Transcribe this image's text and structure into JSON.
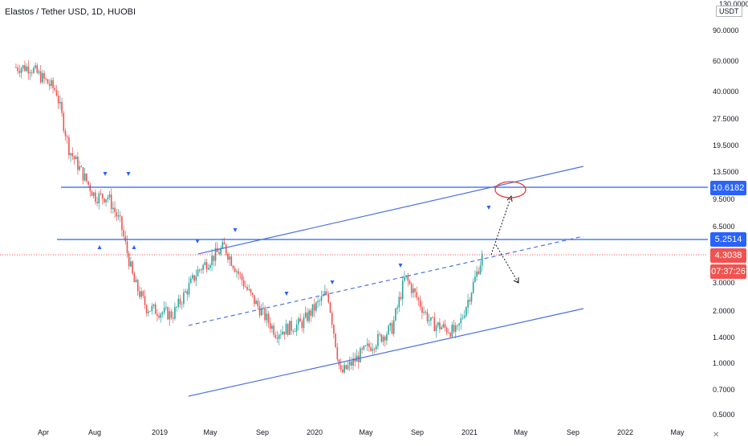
{
  "title": "Elastos / Tether USD, 1D, HUOBI",
  "quote_currency": "USDT",
  "colors": {
    "up": "#26a69a",
    "down": "#ef5350",
    "level": "#2962ff",
    "channel": "#4a72e0",
    "current": "#ef5350",
    "target_ellipse": "#e53935"
  },
  "icons": {
    "pivot_marker": "arrow-icon",
    "close": "close-icon"
  },
  "price_scale": {
    "top_label": "130.0000",
    "ticks": [
      "90.0000",
      "60.0000",
      "40.0000",
      "27.5000",
      "19.5000",
      "13.5000",
      "9.5000",
      "6.5000",
      "3.0000",
      "2.0000",
      "1.4000",
      "1.0000",
      "0.7000",
      "0.5000"
    ]
  },
  "price_labels": {
    "level_high": "10.6182",
    "level_low": "5.2514",
    "current_price": "4.3038",
    "countdown": "07:37:26"
  },
  "time_axis": {
    "ticks": [
      "Apr",
      "Aug",
      "2019",
      "May",
      "Sep",
      "2020",
      "May",
      "Sep",
      "2021",
      "May",
      "Sep",
      "2022",
      "May"
    ]
  },
  "chart_data": {
    "type": "candlestick",
    "title": "Elastos / Tether USD, 1D, HUOBI",
    "y_scale": "log",
    "ylim": [
      0.5,
      130
    ],
    "x_range": [
      "2018-02",
      "2022-06"
    ],
    "approx_close_path": [
      {
        "date": "2018-03",
        "close": 55
      },
      {
        "date": "2018-05",
        "close": 40
      },
      {
        "date": "2018-06",
        "close": 18
      },
      {
        "date": "2018-08",
        "close": 9.5
      },
      {
        "date": "2018-09",
        "close": 9.5
      },
      {
        "date": "2018-10",
        "close": 6.5
      },
      {
        "date": "2018-11",
        "close": 3.0
      },
      {
        "date": "2018-12",
        "close": 2.1
      },
      {
        "date": "2019-02",
        "close": 1.9
      },
      {
        "date": "2019-04",
        "close": 3.5
      },
      {
        "date": "2019-06",
        "close": 4.8
      },
      {
        "date": "2019-08",
        "close": 2.5
      },
      {
        "date": "2019-10",
        "close": 1.5
      },
      {
        "date": "2019-12",
        "close": 1.7
      },
      {
        "date": "2020-02",
        "close": 2.6
      },
      {
        "date": "2020-03",
        "close": 0.85
      },
      {
        "date": "2020-05",
        "close": 1.2
      },
      {
        "date": "2020-07",
        "close": 1.6
      },
      {
        "date": "2020-08",
        "close": 3.2
      },
      {
        "date": "2020-10",
        "close": 1.7
      },
      {
        "date": "2020-12",
        "close": 1.5
      },
      {
        "date": "2021-01",
        "close": 2.5
      },
      {
        "date": "2021-02",
        "close": 4.3
      }
    ],
    "horizontal_levels": [
      10.6182,
      5.2514
    ],
    "current_price": 4.3038
  }
}
